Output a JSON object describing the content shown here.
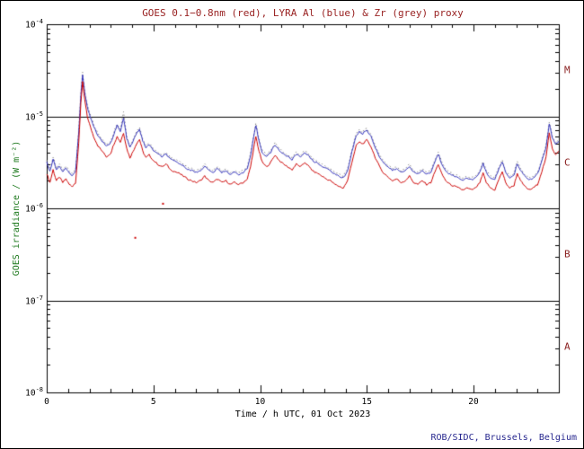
{
  "colors": {
    "title": "#992222",
    "ylabel": "#1f7a1f",
    "xlabel": "#000000",
    "footer": "#28288f",
    "axis": "#000000",
    "tick_labels": "#000000",
    "class_letters": "#8b2222"
  },
  "chart_data": {
    "type": "line",
    "title": "GOES 0.1−0.8nm (red), LYRA Al (blue) & Zr (grey) proxy",
    "xlabel": "Time / h UTC, 01 Oct 2023",
    "ylabel": "GOES irradiance / (W m⁻²)",
    "footer": "ROB/SIDC, Brussels, Belgium",
    "x_range": [
      0,
      24
    ],
    "y_log_range": [
      -8,
      -4
    ],
    "x_major_ticks": [
      0,
      5,
      10,
      15,
      20
    ],
    "x_minor_step": 1,
    "y_decade_exponents": [
      -4,
      -5,
      -6,
      -7,
      -8
    ],
    "class_lines_log10": [
      -5,
      -6,
      -7
    ],
    "flare_classes": [
      {
        "label": "M",
        "log10y": -4.5
      },
      {
        "label": "C",
        "log10y": -5.5
      },
      {
        "label": "B",
        "log10y": -6.5
      },
      {
        "label": "A",
        "log10y": -7.5
      }
    ],
    "grid": false,
    "legend": "encoded in title colors",
    "y_values_scale": "log10 of irradiance in W m^-2",
    "noise_log_amp": 0.018,
    "x": [
      0,
      0.15,
      0.3,
      0.45,
      0.6,
      0.75,
      0.9,
      1.05,
      1.2,
      1.35,
      1.5,
      1.6,
      1.68,
      1.78,
      1.9,
      2.05,
      2.2,
      2.4,
      2.6,
      2.8,
      3,
      3.15,
      3.3,
      3.45,
      3.6,
      3.75,
      3.9,
      4.05,
      4.2,
      4.35,
      4.5,
      4.65,
      4.8,
      5,
      5.2,
      5.4,
      5.6,
      5.8,
      6,
      6.2,
      6.4,
      6.6,
      6.8,
      7,
      7.2,
      7.4,
      7.6,
      7.8,
      8,
      8.2,
      8.4,
      8.6,
      8.8,
      9,
      9.2,
      9.4,
      9.55,
      9.7,
      9.8,
      9.95,
      10.1,
      10.3,
      10.5,
      10.7,
      10.9,
      11.1,
      11.3,
      11.5,
      11.7,
      11.9,
      12.1,
      12.3,
      12.5,
      12.7,
      12.9,
      13.1,
      13.3,
      13.5,
      13.7,
      13.9,
      14.1,
      14.3,
      14.5,
      14.65,
      14.8,
      15,
      15.2,
      15.4,
      15.6,
      15.8,
      16,
      16.2,
      16.4,
      16.6,
      16.8,
      17,
      17.2,
      17.4,
      17.6,
      17.8,
      18,
      18.2,
      18.35,
      18.5,
      18.7,
      18.9,
      19.1,
      19.3,
      19.5,
      19.7,
      19.9,
      20.1,
      20.3,
      20.45,
      20.6,
      20.8,
      21,
      21.2,
      21.35,
      21.5,
      21.7,
      21.9,
      22.05,
      22.2,
      22.4,
      22.6,
      22.8,
      23,
      23.2,
      23.4,
      23.55,
      23.7,
      23.85,
      24
    ],
    "series": [
      {
        "name": "GOES 0.1-0.8nm",
        "color": "#cc0000",
        "style": "solid",
        "values": [
          -5.62,
          -5.72,
          -5.58,
          -5.7,
          -5.66,
          -5.72,
          -5.68,
          -5.74,
          -5.76,
          -5.72,
          -5.3,
          -4.85,
          -4.63,
          -4.82,
          -5.0,
          -5.12,
          -5.22,
          -5.32,
          -5.38,
          -5.44,
          -5.4,
          -5.3,
          -5.22,
          -5.28,
          -5.18,
          -5.35,
          -5.45,
          -5.38,
          -5.3,
          -5.25,
          -5.38,
          -5.45,
          -5.42,
          -5.48,
          -5.52,
          -5.55,
          -5.52,
          -5.58,
          -5.6,
          -5.62,
          -5.65,
          -5.68,
          -5.7,
          -5.72,
          -5.7,
          -5.65,
          -5.7,
          -5.72,
          -5.68,
          -5.72,
          -5.7,
          -5.74,
          -5.72,
          -5.74,
          -5.72,
          -5.68,
          -5.55,
          -5.35,
          -5.22,
          -5.38,
          -5.5,
          -5.55,
          -5.5,
          -5.42,
          -5.48,
          -5.52,
          -5.55,
          -5.58,
          -5.52,
          -5.55,
          -5.5,
          -5.55,
          -5.6,
          -5.62,
          -5.65,
          -5.68,
          -5.7,
          -5.74,
          -5.76,
          -5.78,
          -5.7,
          -5.5,
          -5.32,
          -5.28,
          -5.3,
          -5.26,
          -5.33,
          -5.45,
          -5.55,
          -5.62,
          -5.66,
          -5.7,
          -5.68,
          -5.72,
          -5.7,
          -5.65,
          -5.72,
          -5.74,
          -5.7,
          -5.74,
          -5.72,
          -5.6,
          -5.52,
          -5.62,
          -5.7,
          -5.74,
          -5.76,
          -5.78,
          -5.8,
          -5.78,
          -5.8,
          -5.78,
          -5.72,
          -5.62,
          -5.72,
          -5.78,
          -5.8,
          -5.68,
          -5.6,
          -5.72,
          -5.78,
          -5.75,
          -5.62,
          -5.7,
          -5.76,
          -5.8,
          -5.78,
          -5.74,
          -5.6,
          -5.45,
          -5.18,
          -5.35,
          -5.42,
          -5.38
        ]
      },
      {
        "name": "LYRA Al proxy",
        "color": "#3333bb",
        "style": "solid",
        "values": [
          -5.5,
          -5.6,
          -5.46,
          -5.58,
          -5.54,
          -5.6,
          -5.56,
          -5.62,
          -5.64,
          -5.6,
          -5.18,
          -4.77,
          -4.55,
          -4.74,
          -4.9,
          -5.01,
          -5.11,
          -5.21,
          -5.27,
          -5.33,
          -5.29,
          -5.19,
          -5.1,
          -5.17,
          -5.02,
          -5.24,
          -5.34,
          -5.27,
          -5.19,
          -5.14,
          -5.27,
          -5.34,
          -5.31,
          -5.37,
          -5.41,
          -5.44,
          -5.41,
          -5.47,
          -5.49,
          -5.51,
          -5.54,
          -5.57,
          -5.59,
          -5.61,
          -5.59,
          -5.54,
          -5.59,
          -5.61,
          -5.57,
          -5.61,
          -5.59,
          -5.63,
          -5.61,
          -5.63,
          -5.61,
          -5.57,
          -5.43,
          -5.23,
          -5.1,
          -5.27,
          -5.39,
          -5.44,
          -5.39,
          -5.31,
          -5.37,
          -5.41,
          -5.44,
          -5.47,
          -5.41,
          -5.44,
          -5.39,
          -5.44,
          -5.49,
          -5.51,
          -5.54,
          -5.57,
          -5.59,
          -5.63,
          -5.65,
          -5.67,
          -5.59,
          -5.39,
          -5.21,
          -5.17,
          -5.19,
          -5.15,
          -5.22,
          -5.34,
          -5.44,
          -5.51,
          -5.55,
          -5.59,
          -5.57,
          -5.61,
          -5.59,
          -5.54,
          -5.61,
          -5.63,
          -5.59,
          -5.63,
          -5.61,
          -5.49,
          -5.41,
          -5.51,
          -5.59,
          -5.63,
          -5.65,
          -5.67,
          -5.69,
          -5.67,
          -5.69,
          -5.67,
          -5.61,
          -5.51,
          -5.61,
          -5.67,
          -5.69,
          -5.57,
          -5.49,
          -5.61,
          -5.67,
          -5.64,
          -5.51,
          -5.59,
          -5.65,
          -5.69,
          -5.67,
          -5.63,
          -5.49,
          -5.34,
          -5.08,
          -5.24,
          -5.31,
          -5.27
        ]
      },
      {
        "name": "LYRA Zr proxy",
        "color": "#888888",
        "style": "dotted",
        "values": [
          -5.48,
          -5.58,
          -5.44,
          -5.56,
          -5.52,
          -5.58,
          -5.54,
          -5.6,
          -5.62,
          -5.58,
          -5.16,
          -4.75,
          -4.52,
          -4.72,
          -4.88,
          -4.99,
          -5.09,
          -5.19,
          -5.25,
          -5.31,
          -5.27,
          -5.17,
          -5.08,
          -5.15,
          -4.95,
          -5.22,
          -5.32,
          -5.25,
          -5.17,
          -5.12,
          -5.25,
          -5.32,
          -5.29,
          -5.35,
          -5.39,
          -5.42,
          -5.39,
          -5.45,
          -5.47,
          -5.49,
          -5.52,
          -5.55,
          -5.57,
          -5.59,
          -5.57,
          -5.52,
          -5.57,
          -5.59,
          -5.55,
          -5.59,
          -5.57,
          -5.61,
          -5.59,
          -5.61,
          -5.59,
          -5.55,
          -5.41,
          -5.21,
          -5.08,
          -5.25,
          -5.37,
          -5.42,
          -5.37,
          -5.29,
          -5.35,
          -5.39,
          -5.42,
          -5.45,
          -5.39,
          -5.42,
          -5.37,
          -5.42,
          -5.47,
          -5.49,
          -5.52,
          -5.55,
          -5.57,
          -5.61,
          -5.63,
          -5.65,
          -5.57,
          -5.37,
          -5.19,
          -5.15,
          -5.17,
          -5.13,
          -5.2,
          -5.32,
          -5.42,
          -5.49,
          -5.53,
          -5.57,
          -5.55,
          -5.59,
          -5.57,
          -5.52,
          -5.59,
          -5.61,
          -5.57,
          -5.61,
          -5.59,
          -5.47,
          -5.39,
          -5.49,
          -5.57,
          -5.61,
          -5.63,
          -5.65,
          -5.67,
          -5.65,
          -5.67,
          -5.65,
          -5.59,
          -5.49,
          -5.59,
          -5.65,
          -5.67,
          -5.55,
          -5.47,
          -5.59,
          -5.65,
          -5.62,
          -5.49,
          -5.57,
          -5.63,
          -5.67,
          -5.65,
          -5.61,
          -5.47,
          -5.32,
          -5.06,
          -5.22,
          -5.29,
          -5.25
        ]
      }
    ],
    "stray_points": [
      {
        "x": 4.15,
        "log10y": -6.32,
        "color": "#cc0000"
      },
      {
        "x": 5.45,
        "log10y": -5.95,
        "color": "#cc0000"
      }
    ]
  }
}
